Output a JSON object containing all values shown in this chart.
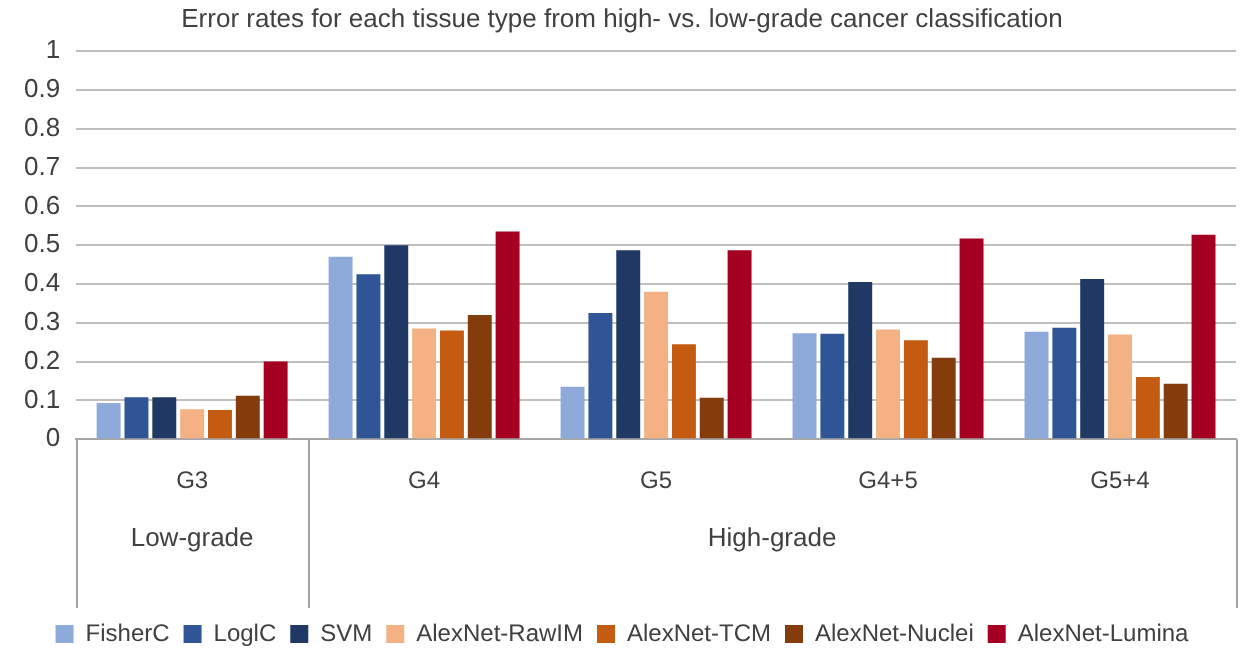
{
  "chart_data": {
    "type": "bar",
    "title": "Error rates for each tissue type from high- vs. low-grade cancer classification",
    "categories": [
      "G3",
      "G4",
      "G5",
      "G4+5",
      "G5+4"
    ],
    "series": [
      {
        "name": "FisherC",
        "color": "#8eaadb",
        "values": [
          0.093,
          0.47,
          0.135,
          0.273,
          0.277
        ]
      },
      {
        "name": "LoglC",
        "color": "#2f5597",
        "values": [
          0.108,
          0.425,
          0.325,
          0.272,
          0.287
        ]
      },
      {
        "name": "SVM",
        "color": "#1f3864",
        "values": [
          0.108,
          0.5,
          0.487,
          0.405,
          0.413
        ]
      },
      {
        "name": "AlexNet-RawIM",
        "color": "#f4b183",
        "values": [
          0.077,
          0.285,
          0.38,
          0.283,
          0.27
        ]
      },
      {
        "name": "AlexNet-TCM",
        "color": "#c55a11",
        "values": [
          0.075,
          0.28,
          0.245,
          0.255,
          0.16
        ]
      },
      {
        "name": "AlexNet-Nuclei",
        "color": "#843c0c",
        "values": [
          0.112,
          0.32,
          0.107,
          0.21,
          0.143
        ]
      },
      {
        "name": "AlexNet-Lumina",
        "color": "#a50021",
        "values": [
          0.2,
          0.535,
          0.487,
          0.517,
          0.527
        ]
      }
    ],
    "ylim": [
      0,
      1
    ],
    "yticks": [
      0,
      0.1,
      0.2,
      0.3,
      0.4,
      0.5,
      0.6,
      0.7,
      0.8,
      0.9,
      1
    ],
    "annotations": [
      "Low-grade",
      "High-grade"
    ],
    "grid": "y",
    "legend": "bottom"
  }
}
